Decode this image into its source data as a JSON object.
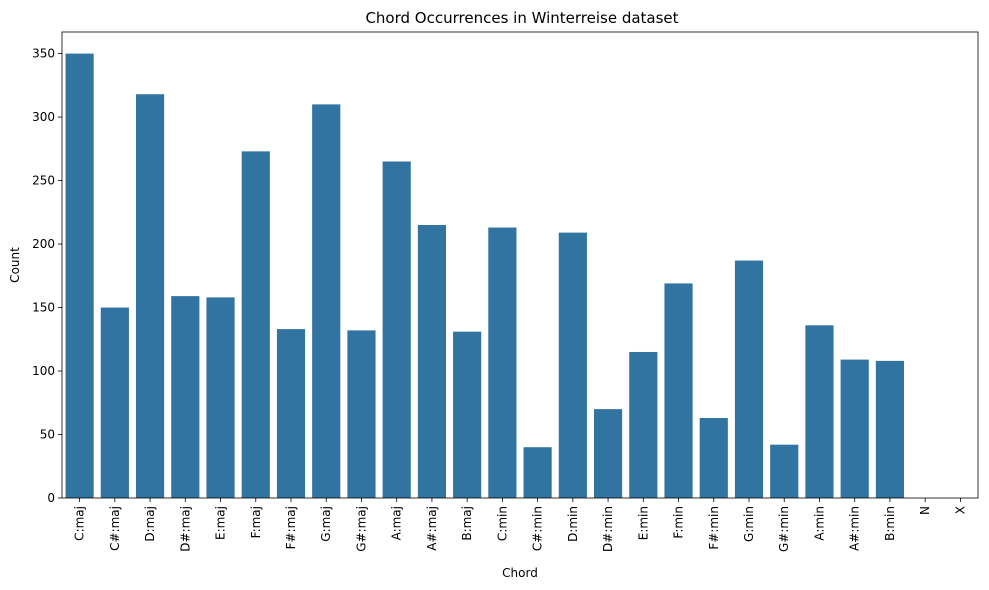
{
  "chart_data": {
    "type": "bar",
    "title": "Chord Occurrences in Winterreise dataset",
    "xlabel": "Chord",
    "ylabel": "Count",
    "categories": [
      "C:maj",
      "C#:maj",
      "D:maj",
      "D#:maj",
      "E:maj",
      "F:maj",
      "F#:maj",
      "G:maj",
      "G#:maj",
      "A:maj",
      "A#:maj",
      "B:maj",
      "C:min",
      "C#:min",
      "D:min",
      "D#:min",
      "E:min",
      "F:min",
      "F#:min",
      "G:min",
      "G#:min",
      "A:min",
      "A#:min",
      "B:min",
      "N",
      "X"
    ],
    "values": [
      350,
      150,
      318,
      159,
      158,
      273,
      133,
      310,
      132,
      265,
      215,
      131,
      213,
      40,
      209,
      70,
      115,
      169,
      63,
      187,
      42,
      136,
      109,
      108,
      0,
      0
    ],
    "ylim": [
      0,
      367
    ],
    "yticks": [
      0,
      50,
      100,
      150,
      200,
      250,
      300,
      350
    ],
    "grid": false,
    "legend": "none",
    "bar_color": "#3274a1"
  }
}
